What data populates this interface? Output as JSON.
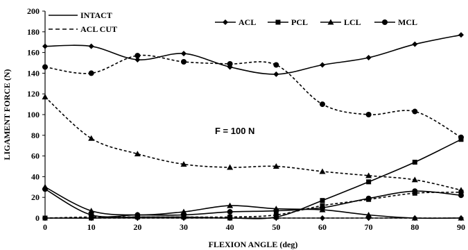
{
  "chart_data": {
    "type": "line",
    "title": "",
    "xlabel": "FLEXION ANGLE (deg)",
    "ylabel": "LIGAMENT FORCE (N)",
    "xlim": [
      0,
      90
    ],
    "ylim": [
      0,
      200
    ],
    "xticks": [
      "0",
      "10",
      "20",
      "30",
      "40",
      "50",
      "60",
      "70",
      "80",
      "90"
    ],
    "yticks": [
      "0",
      "20",
      "40",
      "60",
      "80",
      "100",
      "120",
      "140",
      "160",
      "180",
      "200"
    ],
    "x": [
      0,
      10,
      20,
      30,
      40,
      50,
      60,
      70,
      80,
      90
    ],
    "grid": false,
    "annotation": "F = 100 N",
    "condition_legend": [
      {
        "label": "INTACT",
        "line": "solid"
      },
      {
        "label": "ACL CUT",
        "line": "dashed"
      }
    ],
    "marker_legend": [
      {
        "label": "ACL",
        "marker": "diamond"
      },
      {
        "label": "PCL",
        "marker": "square"
      },
      {
        "label": "LCL",
        "marker": "triangle"
      },
      {
        "label": "MCL",
        "marker": "circle"
      }
    ],
    "series": [
      {
        "ligament": "ACL",
        "condition": "INTACT",
        "marker": "diamond",
        "line": "solid",
        "values": [
          166,
          166,
          153,
          159,
          146,
          139,
          148,
          155,
          168,
          177
        ]
      },
      {
        "ligament": "MCL",
        "condition": "INTACT",
        "marker": "circle",
        "line": "solid",
        "values": [
          28,
          3,
          3,
          3,
          6,
          7,
          10,
          19,
          26,
          22
        ]
      },
      {
        "ligament": "LCL",
        "condition": "INTACT",
        "marker": "triangle",
        "line": "solid",
        "values": [
          30,
          7,
          3,
          6,
          12,
          9,
          8,
          3,
          0,
          0
        ]
      },
      {
        "ligament": "PCL",
        "condition": "INTACT",
        "marker": "square",
        "line": "solid",
        "values": [
          0,
          0,
          1,
          1,
          0,
          1,
          17,
          35,
          54,
          76
        ]
      },
      {
        "ligament": "MCL",
        "condition": "ACL CUT",
        "marker": "circle",
        "line": "dashed",
        "values": [
          146,
          140,
          157,
          151,
          149,
          148,
          110,
          100,
          103,
          78
        ]
      },
      {
        "ligament": "LCL",
        "condition": "ACL CUT",
        "marker": "triangle",
        "line": "dashed",
        "values": [
          117,
          77,
          62,
          52,
          49,
          50,
          45,
          41,
          37,
          27
        ]
      },
      {
        "ligament": "PCL",
        "condition": "ACL CUT",
        "marker": "square",
        "line": "dashed",
        "values": [
          0,
          1,
          1,
          1,
          1,
          3,
          12,
          18,
          24,
          25
        ]
      },
      {
        "ligament": "ACL",
        "condition": "ACL CUT",
        "marker": "diamond",
        "line": "dashed",
        "values": [
          0,
          0,
          0,
          0,
          0,
          0,
          0,
          0,
          0,
          0
        ]
      }
    ]
  }
}
